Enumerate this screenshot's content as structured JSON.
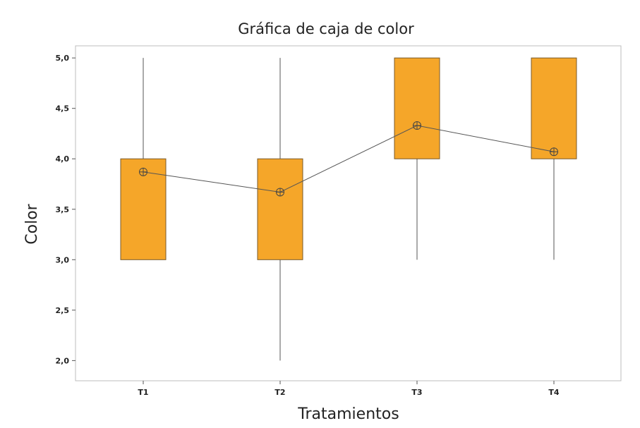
{
  "chart_data": {
    "type": "box",
    "title": "Gráfica de caja de color",
    "xlabel": "Tratamientos",
    "ylabel": "Color",
    "categories": [
      "T1",
      "T2",
      "T3",
      "T4"
    ],
    "boxes": [
      {
        "category": "T1",
        "whisker_low": 3.0,
        "q1": 3.0,
        "q3": 4.0,
        "whisker_high": 5.0,
        "mean": 3.87
      },
      {
        "category": "T2",
        "whisker_low": 2.0,
        "q1": 3.0,
        "q3": 4.0,
        "whisker_high": 5.0,
        "mean": 3.67
      },
      {
        "category": "T3",
        "whisker_low": 3.0,
        "q1": 4.0,
        "q3": 5.0,
        "whisker_high": 5.0,
        "mean": 4.33
      },
      {
        "category": "T4",
        "whisker_low": 3.0,
        "q1": 4.0,
        "q3": 5.0,
        "whisker_high": 5.0,
        "mean": 4.07
      }
    ],
    "yticks": [
      2.0,
      2.5,
      3.0,
      3.5,
      4.0,
      4.5,
      5.0
    ],
    "ytick_labels": [
      "2,0",
      "2,5",
      "3,0",
      "3,5",
      "4,0",
      "4,5",
      "5,0"
    ],
    "ylim": [
      1.8,
      5.12
    ],
    "mean_connect_line": true,
    "grid": false,
    "box_color": "#f5a629"
  }
}
